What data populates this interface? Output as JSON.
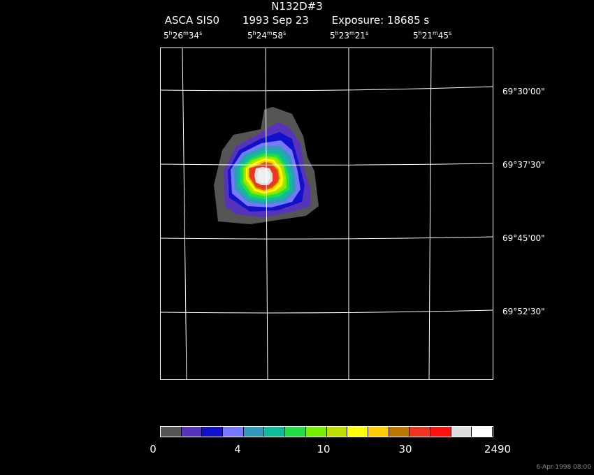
{
  "header": {
    "object": "N132D#3",
    "instrument": "ASCA SIS0",
    "date": "1993 Sep 23",
    "exposure": "Exposure: 18685 s"
  },
  "ra_ticks": [
    {
      "h": "5",
      "m": "26",
      "s": "34"
    },
    {
      "h": "5",
      "m": "24",
      "s": "58"
    },
    {
      "h": "5",
      "m": "23",
      "s": "21"
    },
    {
      "h": "5",
      "m": "21",
      "s": "45"
    }
  ],
  "dec_ticks": [
    "69°30'00\"",
    "69°37'30\"",
    "69°45'00\"",
    "69°52'30\""
  ],
  "colorbar": {
    "colors": [
      "#555555",
      "#5533bb",
      "#1111cc",
      "#7777ff",
      "#3399bb",
      "#11bb99",
      "#22dd44",
      "#77ee00",
      "#bbdd00",
      "#ffff00",
      "#ffcc00",
      "#bb7700",
      "#ee3322",
      "#ff1111",
      "#dddddd",
      "#ffffff"
    ],
    "labels": [
      "0",
      "4",
      "10",
      "30",
      "2490"
    ]
  },
  "footer": "6-Apr-1998 08:00"
}
